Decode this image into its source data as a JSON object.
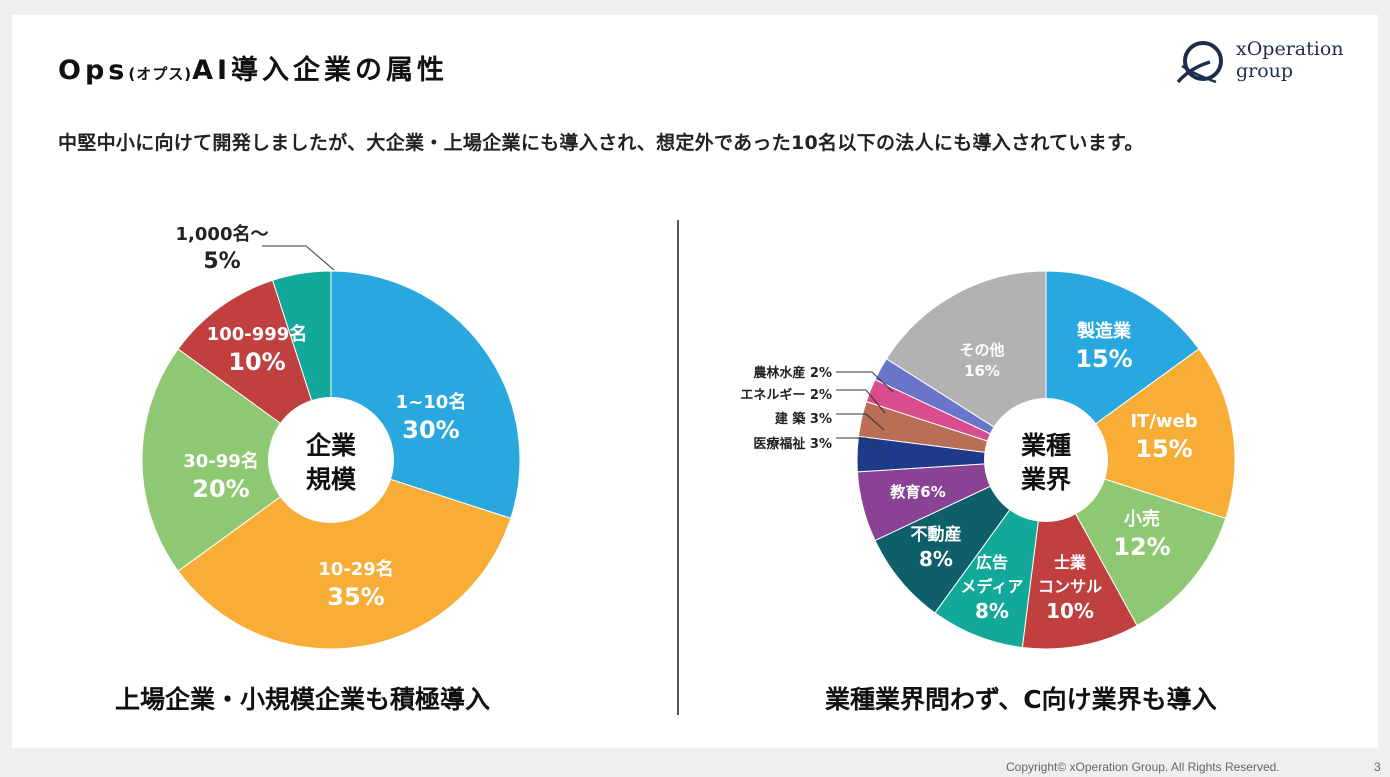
{
  "page": {
    "title_main": "Ops",
    "title_paren": "(オプス)",
    "title_rest": "AI導入企業の属性",
    "subtitle": "中堅中小に向けて開発しましたが、大企業・上場企業にも導入され、想定外であった10名以下の法人にも導入されています。",
    "logo_line1": "xOperation",
    "logo_line2": "group",
    "caption_left": "上場企業・小規模企業も積極導入",
    "caption_right": "業種業界問わず、C向け業界も導入",
    "footer": "Copyright© xOperation Group. All Rights Reserved.",
    "page_number": "3"
  },
  "chart_data": [
    {
      "type": "pie",
      "center_label": [
        "企業",
        "規模"
      ],
      "slices": [
        {
          "label": "1~10名",
          "value": 30,
          "value_label": "30%",
          "color": "#29a8e0"
        },
        {
          "label": "10-29名",
          "value": 35,
          "value_label": "35%",
          "color": "#f8ad37"
        },
        {
          "label": "30-99名",
          "value": 20,
          "value_label": "20%",
          "color": "#8fc872"
        },
        {
          "label": "100-999名",
          "value": 10,
          "value_label": "10%",
          "color": "#c0403f"
        },
        {
          "label": "1,000名〜",
          "value": 5,
          "value_label": "5%",
          "color": "#12a99b"
        }
      ]
    },
    {
      "type": "pie",
      "center_label": [
        "業種",
        "業界"
      ],
      "slices": [
        {
          "label": "製造業",
          "value": 15,
          "value_label": "15%",
          "color": "#29a8e0"
        },
        {
          "label": "IT/web",
          "value": 15,
          "value_label": "15%",
          "color": "#f8ad37"
        },
        {
          "label": "小売",
          "value": 12,
          "value_label": "12%",
          "color": "#8fc872"
        },
        {
          "label": "士業 コンサル",
          "value": 10,
          "value_label": "10%",
          "color": "#c0403f"
        },
        {
          "label": "広告 メディア",
          "value": 8,
          "value_label": "8%",
          "color": "#12a99b"
        },
        {
          "label": "不動産",
          "value": 8,
          "value_label": "8%",
          "color": "#0f5f6b"
        },
        {
          "label": "教育",
          "value": 6,
          "value_label": "6%",
          "color": "#8a4295"
        },
        {
          "label": "医療福祉",
          "value": 3,
          "value_label": "3%",
          "color": "#1d3a8b"
        },
        {
          "label": "建 築",
          "value": 3,
          "value_label": "3%",
          "color": "#b96e55"
        },
        {
          "label": "エネルギー",
          "value": 2,
          "value_label": "2%",
          "color": "#d94d8e"
        },
        {
          "label": "農林水産",
          "value": 2,
          "value_label": "2%",
          "color": "#6a75c9"
        },
        {
          "label": "その他",
          "value": 16,
          "value_label": "16%",
          "color": "#b2b2b2"
        }
      ]
    }
  ]
}
